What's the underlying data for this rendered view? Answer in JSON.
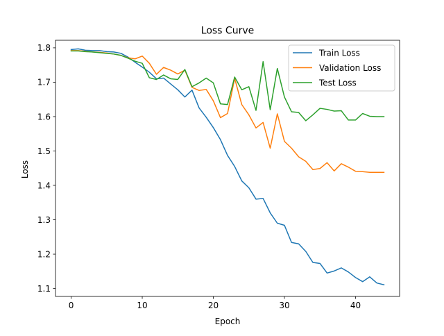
{
  "chart_data": {
    "type": "line",
    "title": "Loss Curve",
    "xlabel": "Epoch",
    "ylabel": "Loss",
    "xlim": [
      -2.2,
      46.2
    ],
    "ylim": [
      1.077,
      1.822
    ],
    "xticks": [
      0,
      10,
      20,
      30,
      40
    ],
    "yticks": [
      1.1,
      1.2,
      1.3,
      1.4,
      1.5,
      1.6,
      1.7,
      1.8
    ],
    "ytick_labels": [
      "1.1",
      "1.2",
      "1.3",
      "1.4",
      "1.5",
      "1.6",
      "1.7",
      "1.8"
    ],
    "grid": false,
    "legend_position": "top-right",
    "x": [
      0,
      1,
      2,
      3,
      4,
      5,
      6,
      7,
      8,
      9,
      10,
      11,
      12,
      13,
      14,
      15,
      16,
      17,
      18,
      19,
      20,
      21,
      22,
      23,
      24,
      25,
      26,
      27,
      28,
      29,
      30,
      31,
      32,
      33,
      34,
      35,
      36,
      37,
      38,
      39,
      40,
      41,
      42,
      43,
      44
    ],
    "series": [
      {
        "name": "Train Loss",
        "color": "#1f77b4",
        "values": [
          1.795,
          1.797,
          1.793,
          1.792,
          1.792,
          1.789,
          1.788,
          1.784,
          1.773,
          1.758,
          1.744,
          1.729,
          1.71,
          1.712,
          1.695,
          1.678,
          1.657,
          1.677,
          1.625,
          1.598,
          1.568,
          1.533,
          1.487,
          1.455,
          1.413,
          1.393,
          1.36,
          1.362,
          1.32,
          1.29,
          1.284,
          1.234,
          1.23,
          1.208,
          1.176,
          1.173,
          1.145,
          1.151,
          1.16,
          1.148,
          1.132,
          1.12,
          1.134,
          1.116,
          1.111
        ]
      },
      {
        "name": "Validation Loss",
        "color": "#ff7f0e",
        "values": [
          1.792,
          1.792,
          1.79,
          1.788,
          1.787,
          1.785,
          1.782,
          1.778,
          1.771,
          1.768,
          1.776,
          1.755,
          1.723,
          1.743,
          1.735,
          1.724,
          1.735,
          1.685,
          1.676,
          1.679,
          1.646,
          1.597,
          1.609,
          1.711,
          1.635,
          1.605,
          1.567,
          1.583,
          1.508,
          1.608,
          1.528,
          1.508,
          1.483,
          1.47,
          1.446,
          1.449,
          1.466,
          1.442,
          1.463,
          1.453,
          1.441,
          1.44,
          1.438,
          1.438,
          1.438
        ]
      },
      {
        "name": "Test Loss",
        "color": "#2ca02c",
        "values": [
          1.791,
          1.791,
          1.789,
          1.788,
          1.786,
          1.784,
          1.782,
          1.778,
          1.77,
          1.761,
          1.755,
          1.713,
          1.708,
          1.721,
          1.71,
          1.708,
          1.737,
          1.687,
          1.698,
          1.712,
          1.698,
          1.637,
          1.635,
          1.715,
          1.678,
          1.687,
          1.618,
          1.76,
          1.62,
          1.74,
          1.657,
          1.614,
          1.612,
          1.588,
          1.605,
          1.624,
          1.621,
          1.616,
          1.617,
          1.59,
          1.59,
          1.609,
          1.601,
          1.6,
          1.6
        ]
      }
    ]
  }
}
